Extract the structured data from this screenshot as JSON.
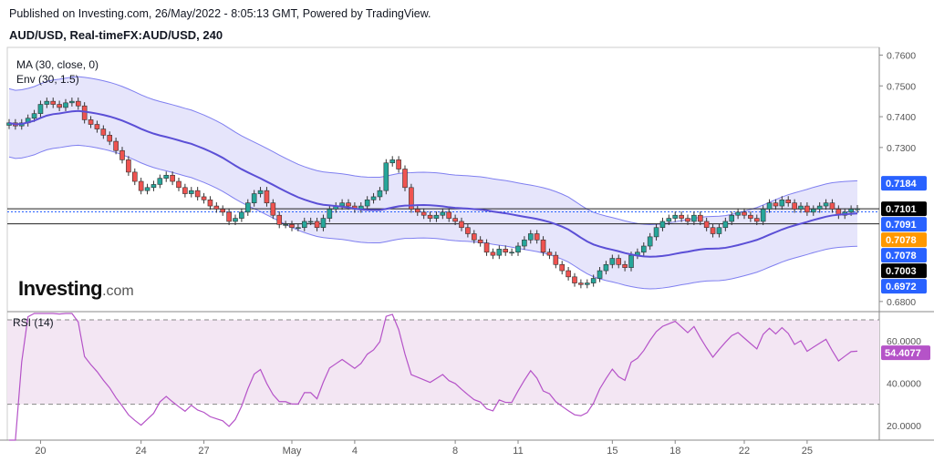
{
  "header": {
    "published": "Published on Investing.com, 26/May/2022 - 8:05:13 GMT, Powered by TradingView.",
    "symbol": "AUD/USD, Real-timeFX:AUD/USD, 240"
  },
  "logo": {
    "main": "Investing",
    "suffix": ".com"
  },
  "colors": {
    "bull": "#26a69a",
    "bear": "#ef5350",
    "ma": "#5b4fd6",
    "band_fill": "#e6e5fb",
    "band_line": "#7f7ff0",
    "rsi": "#b553c8",
    "rsi_fill": "#f3e6f3",
    "tag_blue": "#2962ff",
    "tag_black": "#000000",
    "tag_orange": "#ff9800"
  },
  "chart_data": [
    {
      "type": "candlestick",
      "title": "AUD/USD, Real-timeFX:AUD/USD, 240",
      "indicators": [
        "MA (30, close, 0)",
        "Env (30, 1.5)"
      ],
      "ylim": [
        0.677,
        0.7625
      ],
      "y_ticks": [
        "0.6800",
        "0.7300",
        "0.7400",
        "0.7500",
        "0.7600"
      ],
      "x_ticks": [
        "20",
        "24",
        "27",
        "May",
        "4",
        "8",
        "11",
        "15",
        "18",
        "22",
        "25"
      ],
      "x_tick_index": [
        5,
        21,
        31,
        45,
        55,
        71,
        81,
        96,
        106,
        117,
        127
      ],
      "n_bars": 136,
      "ohlc_close": [
        0.738,
        0.737,
        0.738,
        0.7395,
        0.741,
        0.744,
        0.745,
        0.744,
        0.743,
        0.7445,
        0.745,
        0.7435,
        0.739,
        0.7375,
        0.736,
        0.734,
        0.732,
        0.729,
        0.726,
        0.722,
        0.719,
        0.716,
        0.717,
        0.718,
        0.72,
        0.721,
        0.719,
        0.717,
        0.715,
        0.716,
        0.714,
        0.713,
        0.711,
        0.71,
        0.709,
        0.706,
        0.707,
        0.709,
        0.712,
        0.715,
        0.716,
        0.712,
        0.708,
        0.705,
        0.705,
        0.704,
        0.704,
        0.706,
        0.706,
        0.704,
        0.707,
        0.71,
        0.711,
        0.712,
        0.711,
        0.71,
        0.711,
        0.713,
        0.714,
        0.716,
        0.725,
        0.726,
        0.723,
        0.717,
        0.71,
        0.709,
        0.708,
        0.707,
        0.708,
        0.709,
        0.707,
        0.706,
        0.704,
        0.702,
        0.7,
        0.699,
        0.696,
        0.695,
        0.697,
        0.696,
        0.696,
        0.698,
        0.7,
        0.702,
        0.7,
        0.696,
        0.695,
        0.692,
        0.69,
        0.688,
        0.686,
        0.6855,
        0.686,
        0.6875,
        0.69,
        0.692,
        0.694,
        0.692,
        0.691,
        0.695,
        0.696,
        0.698,
        0.701,
        0.704,
        0.706,
        0.707,
        0.708,
        0.707,
        0.706,
        0.708,
        0.706,
        0.704,
        0.702,
        0.704,
        0.706,
        0.708,
        0.709,
        0.708,
        0.707,
        0.706,
        0.71,
        0.712,
        0.711,
        0.713,
        0.712,
        0.71,
        0.711,
        0.709,
        0.71,
        0.711,
        0.712,
        0.71,
        0.708,
        0.709,
        0.71,
        0.7101
      ],
      "price_labels": [
        {
          "text": "0.7184",
          "value": 0.7184,
          "color": "#2962ff"
        },
        {
          "text": "0.7101",
          "value": 0.7101,
          "color": "#000000"
        },
        {
          "text": "0.7091",
          "value": 0.7091,
          "color": "#2962ff"
        },
        {
          "text": "0.7078",
          "value": 0.7078,
          "color": "#ff9800"
        },
        {
          "text": "0.7078",
          "value": 0.7078,
          "color": "#2962ff"
        },
        {
          "text": "0.7003",
          "value": 0.7003,
          "color": "#000000"
        },
        {
          "text": "0.6972",
          "value": 0.6972,
          "color": "#2962ff"
        }
      ],
      "hlines": [
        0.7101,
        0.7052
      ],
      "dotted_line": 0.7091
    },
    {
      "type": "line",
      "title": "RSI (14)",
      "ylim": [
        13,
        73
      ],
      "y_ticks": [
        "20.0000",
        "40.0000",
        "60.0000"
      ],
      "y_tick_values": [
        20,
        40,
        60
      ],
      "band": [
        30,
        70
      ],
      "last_label": "54.4077",
      "last_value": 54.4077
    }
  ]
}
